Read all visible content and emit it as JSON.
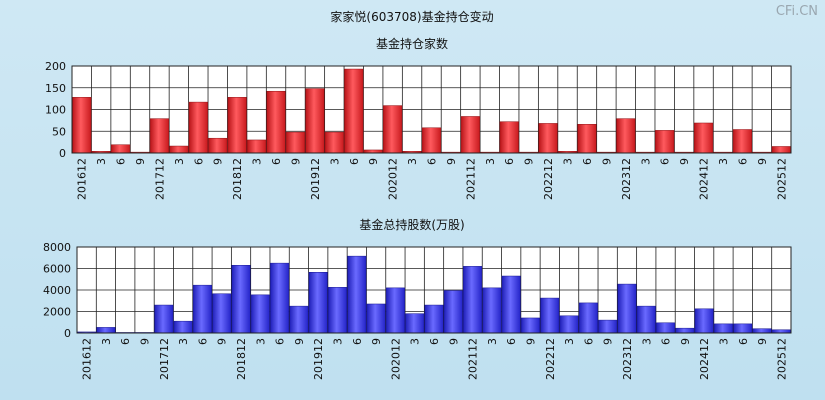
{
  "page": {
    "title": "家家悦(603708)基金持仓变动",
    "watermark": "CFi.CN"
  },
  "chart_data": [
    {
      "type": "bar",
      "title": "基金持仓家数",
      "categories": [
        "201612",
        "3",
        "6",
        "9",
        "201712",
        "3",
        "6",
        "9",
        "201812",
        "3",
        "6",
        "9",
        "201912",
        "3",
        "6",
        "9",
        "202012",
        "3",
        "6",
        "9",
        "202112",
        "3",
        "6",
        "9",
        "202212",
        "3",
        "6",
        "9",
        "202312",
        "3",
        "6",
        "9",
        "202412",
        "3",
        "6",
        "9",
        "202512"
      ],
      "values": [
        128,
        4,
        19,
        2,
        79,
        16,
        117,
        34,
        128,
        30,
        142,
        48,
        148,
        48,
        193,
        7,
        109,
        4,
        58,
        2,
        84,
        2,
        72,
        2,
        68,
        4,
        66,
        2,
        79,
        2,
        52,
        2,
        69,
        2,
        54,
        2,
        15
      ],
      "ylim": [
        0,
        200
      ],
      "yticks": [
        0,
        50,
        100,
        150,
        200
      ],
      "color": "#e8262a",
      "grid": true
    },
    {
      "type": "bar",
      "title": "基金总持股数(万股)",
      "categories": [
        "201612",
        "3",
        "6",
        "9",
        "201712",
        "3",
        "6",
        "9",
        "201812",
        "3",
        "6",
        "9",
        "201912",
        "3",
        "6",
        "9",
        "202012",
        "3",
        "6",
        "9",
        "202112",
        "3",
        "6",
        "9",
        "202212",
        "3",
        "6",
        "9",
        "202312",
        "3",
        "6",
        "9",
        "202412",
        "3",
        "6",
        "9",
        "202512"
      ],
      "values": [
        100,
        520,
        50,
        50,
        2600,
        1100,
        4450,
        3650,
        6300,
        3550,
        6500,
        2500,
        5650,
        4250,
        7150,
        2700,
        4200,
        1800,
        2600,
        3950,
        6200,
        4200,
        5300,
        1400,
        3250,
        1600,
        2800,
        1200,
        4550,
        2500,
        950,
        450,
        2250,
        850,
        850,
        400,
        300
      ],
      "ylim": [
        0,
        8000
      ],
      "yticks": [
        0,
        2000,
        4000,
        6000,
        8000
      ],
      "color": "#2f2fe8",
      "grid": true
    }
  ]
}
